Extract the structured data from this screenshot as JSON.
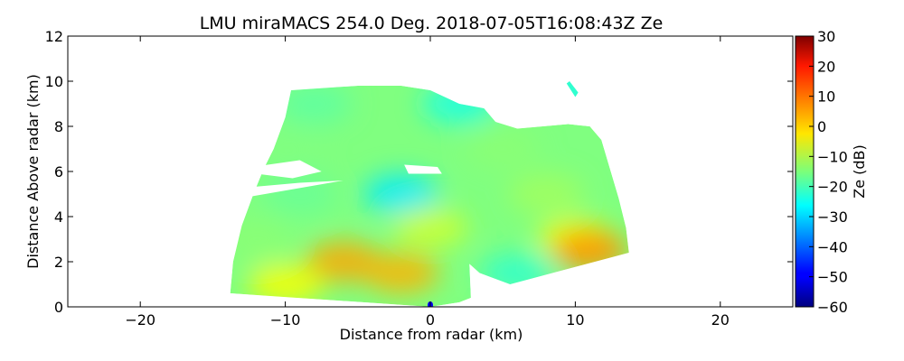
{
  "chart_data": {
    "type": "heatmap",
    "title": "LMU miraMACS 254.0 Deg. 2018-07-05T16:08:43Z  Ze",
    "xlabel": "Distance from radar (km)",
    "ylabel": "Distance Above radar  (km)",
    "xlim": [
      -25,
      25
    ],
    "ylim": [
      0,
      12
    ],
    "xticks": [
      -20,
      -10,
      0,
      10,
      20
    ],
    "yticks": [
      0,
      2,
      4,
      6,
      8,
      10,
      12
    ],
    "xtick_labels": [
      "−20",
      "−10",
      "0",
      "10",
      "20"
    ],
    "ytick_labels": [
      "0",
      "2",
      "4",
      "6",
      "8",
      "10",
      "12"
    ],
    "colorbar": {
      "label": "Ze (dB)",
      "range": [
        -60,
        30
      ],
      "ticks": [
        -60,
        -50,
        -40,
        -30,
        -20,
        -10,
        0,
        10,
        20,
        30
      ],
      "tick_labels": [
        "−60",
        "−50",
        "−40",
        "−30",
        "−20",
        "−10",
        "0",
        "10",
        "20",
        "30"
      ],
      "colormap": "jet"
    },
    "scan_sector": {
      "radar_position_km": [
        0,
        0
      ],
      "boundary_km": [
        [
          -13.8,
          0.6
        ],
        [
          -13.6,
          2.0
        ],
        [
          -13.0,
          3.6
        ],
        [
          -12.2,
          5.0
        ],
        [
          -11.5,
          6.1
        ],
        [
          -10.8,
          7.0
        ],
        [
          -10.0,
          8.4
        ],
        [
          -9.6,
          9.6
        ],
        [
          -5.0,
          9.8
        ],
        [
          -2.0,
          9.8
        ],
        [
          0,
          9.6
        ],
        [
          2.0,
          9.0
        ],
        [
          3.7,
          8.8
        ],
        [
          4.5,
          8.2
        ],
        [
          6.0,
          7.9
        ],
        [
          9.5,
          8.1
        ],
        [
          11.0,
          8.0
        ],
        [
          11.8,
          7.4
        ],
        [
          12.4,
          6.1
        ],
        [
          13.0,
          4.8
        ],
        [
          13.5,
          3.5
        ],
        [
          13.7,
          2.4
        ],
        [
          5.5,
          1.0
        ],
        [
          3.4,
          1.5
        ],
        [
          2.7,
          1.9
        ],
        [
          2.8,
          0.4
        ],
        [
          2.0,
          0.2
        ],
        [
          0,
          0.0
        ],
        [
          -13.8,
          0.6
        ]
      ],
      "sample_Ze_dB": [
        {
          "x": -8,
          "y": 9,
          "Ze": -18
        },
        {
          "x": 2,
          "y": 9,
          "Ze": -24
        },
        {
          "x": -10,
          "y": 7,
          "Ze": -15
        },
        {
          "x": 5,
          "y": 7,
          "Ze": -14
        },
        {
          "x": -9,
          "y": 5,
          "Ze": -17
        },
        {
          "x": -2,
          "y": 5,
          "Ze": -28
        },
        {
          "x": 8,
          "y": 5,
          "Ze": -12
        },
        {
          "x": -12,
          "y": 3,
          "Ze": -14
        },
        {
          "x": 0,
          "y": 3.5,
          "Ze": -8
        },
        {
          "x": 10,
          "y": 3,
          "Ze": -4
        },
        {
          "x": -6,
          "y": 2,
          "Ze": 4
        },
        {
          "x": -2,
          "y": 1.5,
          "Ze": 3
        },
        {
          "x": 11,
          "y": 2.5,
          "Ze": 6
        },
        {
          "x": 6,
          "y": 1.5,
          "Ze": -22
        },
        {
          "x": -10,
          "y": 1,
          "Ze": -4
        }
      ],
      "echo_free_gaps": [
        {
          "name": "gap-left-6km",
          "polygon_km": [
            [
              -12.3,
              6.2
            ],
            [
              -9.0,
              6.5
            ],
            [
              -7.5,
              6.0
            ],
            [
              -9.5,
              5.7
            ],
            [
              -12.0,
              5.9
            ]
          ]
        },
        {
          "name": "gap-center-6km",
          "polygon_km": [
            [
              -1.8,
              6.3
            ],
            [
              0.5,
              6.2
            ],
            [
              0.8,
              5.9
            ],
            [
              -1.5,
              5.9
            ]
          ]
        },
        {
          "name": "gap-left-5km",
          "polygon_km": [
            [
              -12.5,
              5.3
            ],
            [
              -9.0,
              5.5
            ],
            [
              -6.0,
              5.6
            ],
            [
              -12.3,
              4.9
            ]
          ]
        }
      ],
      "isolated_echo": {
        "x": 9.8,
        "y": 9.7,
        "Ze": -22
      }
    }
  }
}
